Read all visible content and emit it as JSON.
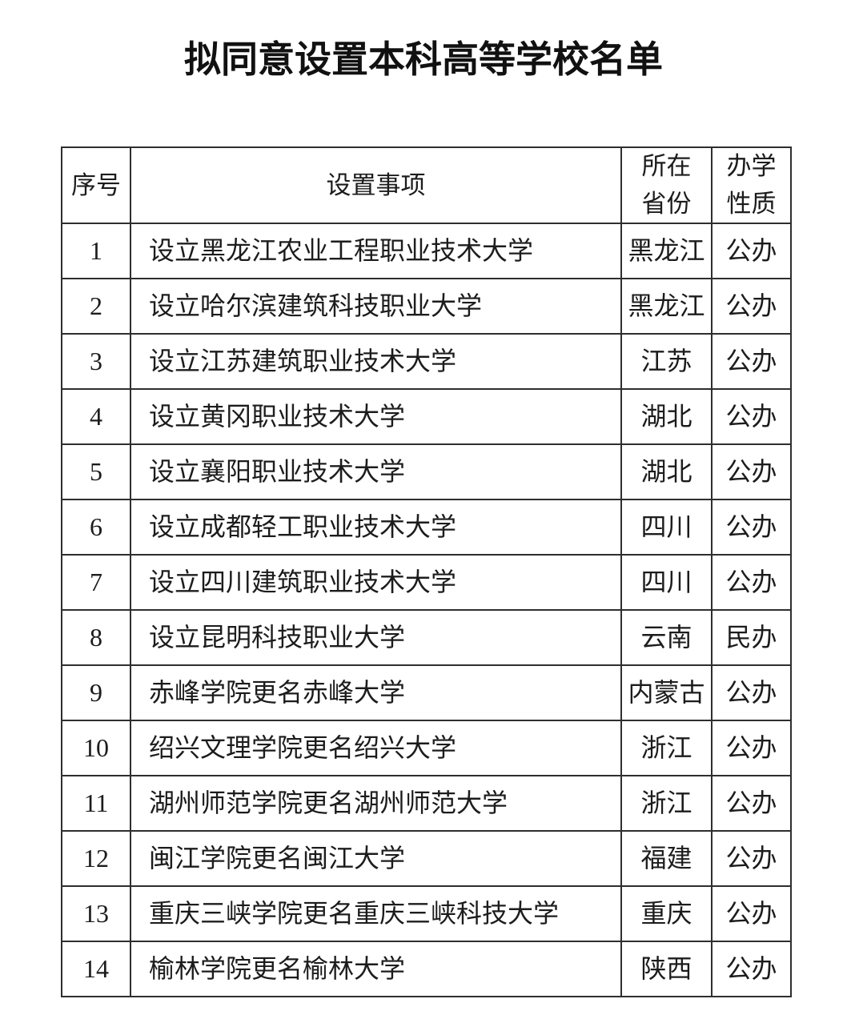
{
  "title": "拟同意设置本科高等学校名单",
  "table": {
    "headers": {
      "index": "序号",
      "item": "设置事项",
      "province": "所在省份",
      "nature": "办学性质"
    },
    "rows": [
      {
        "index": "1",
        "item": "设立黑龙江农业工程职业技术大学",
        "province": "黑龙江",
        "nature": "公办"
      },
      {
        "index": "2",
        "item": "设立哈尔滨建筑科技职业大学",
        "province": "黑龙江",
        "nature": "公办"
      },
      {
        "index": "3",
        "item": "设立江苏建筑职业技术大学",
        "province": "江苏",
        "nature": "公办"
      },
      {
        "index": "4",
        "item": "设立黄冈职业技术大学",
        "province": "湖北",
        "nature": "公办"
      },
      {
        "index": "5",
        "item": "设立襄阳职业技术大学",
        "province": "湖北",
        "nature": "公办"
      },
      {
        "index": "6",
        "item": "设立成都轻工职业技术大学",
        "province": "四川",
        "nature": "公办"
      },
      {
        "index": "7",
        "item": "设立四川建筑职业技术大学",
        "province": "四川",
        "nature": "公办"
      },
      {
        "index": "8",
        "item": "设立昆明科技职业大学",
        "province": "云南",
        "nature": "民办"
      },
      {
        "index": "9",
        "item": "赤峰学院更名赤峰大学",
        "province": "内蒙古",
        "nature": "公办"
      },
      {
        "index": "10",
        "item": "绍兴文理学院更名绍兴大学",
        "province": "浙江",
        "nature": "公办"
      },
      {
        "index": "11",
        "item": "湖州师范学院更名湖州师范大学",
        "province": "浙江",
        "nature": "公办"
      },
      {
        "index": "12",
        "item": "闽江学院更名闽江大学",
        "province": "福建",
        "nature": "公办"
      },
      {
        "index": "13",
        "item": "重庆三峡学院更名重庆三峡科技大学",
        "province": "重庆",
        "nature": "公办"
      },
      {
        "index": "14",
        "item": "榆林学院更名榆林大学",
        "province": "陕西",
        "nature": "公办"
      }
    ]
  }
}
